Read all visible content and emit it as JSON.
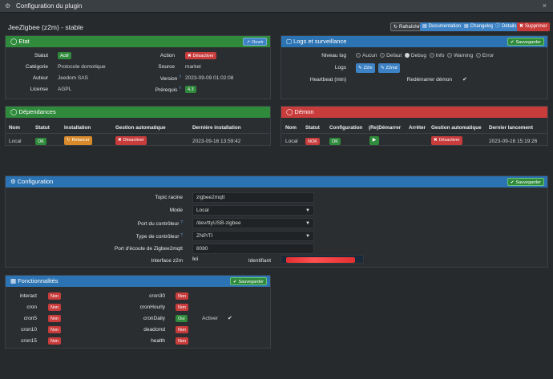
{
  "window": {
    "title": "Configuration du plugin",
    "close": "×"
  },
  "plugin_title": "JeeZigbee (z2m) - stable",
  "toolbar": {
    "refresh": "Rafraîchir",
    "docs": "Documentation",
    "changelog": "Changelog",
    "details": "Détails",
    "delete": "Supprimer"
  },
  "etat": {
    "title": "Etat",
    "open_button": "Ouvrir",
    "statut_label": "Statut",
    "statut_value": "Actif",
    "categorie_label": "Catégorie",
    "categorie_value": "Protocole domotique",
    "auteur_label": "Auteur",
    "auteur_value": "Jeedom SAS",
    "license_label": "License",
    "license_value": "AGPL",
    "action_label": "Action",
    "action_button": "Désactiver",
    "source_label": "Source",
    "source_value": "market",
    "version_label": "Version",
    "version_value": "2023-09-09 01:02:08",
    "prerequis_label": "Prérequis",
    "prerequis_value": "4.3"
  },
  "logs": {
    "title": "Logs et surveillance",
    "save_button": "Sauvegarder",
    "niveau_label": "Niveau log",
    "levels": [
      "Aucun",
      "Defaut",
      "Debug",
      "Info",
      "Warning",
      "Error"
    ],
    "selected_level": "Debug",
    "logs_label": "Logs",
    "log_buttons": [
      "Z2m",
      "Z2md"
    ],
    "heartbeat_label": "Heartbeat (min)",
    "restart_label": "Redémarrer démon"
  },
  "dependances": {
    "title": "Dépendances",
    "headers": [
      "Nom",
      "Statut",
      "Installation",
      "Gestion automatique",
      "Dernière installation"
    ],
    "row": {
      "nom": "Local",
      "statut": "OK",
      "installation": "Relancer",
      "gestion": "Désactiver",
      "derniere": "2023-09-16 13:59:42"
    }
  },
  "demon": {
    "title": "Démon",
    "headers": [
      "Nom",
      "Statut",
      "Configuration",
      "(Re)Démarrer",
      "Arrêter",
      "Gestion automatique",
      "Dernier lancement"
    ],
    "row": {
      "nom": "Local",
      "statut": "NOK",
      "configuration": "OK",
      "gestion": "Désactiver",
      "dernier": "2023-09-16 15:19:26"
    }
  },
  "configuration": {
    "title": "Configuration",
    "save_button": "Sauvegarder",
    "topic_label": "Topic racine",
    "topic_value": "zigbee2mqtt",
    "mode_label": "Mode",
    "mode_value": "Local",
    "port_label": "Port du contrôleur",
    "port_value": "/dev/ttyUSB-zigbee",
    "type_label": "Type de contrôleur",
    "type_value": "ZNP/TI",
    "ecoute_label": "Port d'écoute de Zigbee2mqtt",
    "ecoute_value": "8080",
    "interface_label": "Interface z2m",
    "interface_value": "Ici",
    "identifiant_label": "Identifiant"
  },
  "fonctionnalites": {
    "title": "Fonctionnalités",
    "save_button": "Sauvegarder",
    "left": [
      {
        "name": "interact",
        "value": "Non"
      },
      {
        "name": "cron",
        "value": "Non"
      },
      {
        "name": "cron5",
        "value": "Non"
      },
      {
        "name": "cron10",
        "value": "Non"
      },
      {
        "name": "cron15",
        "value": "Non"
      }
    ],
    "right": [
      {
        "name": "cron30",
        "value": "Non"
      },
      {
        "name": "cronHourly",
        "value": "Non"
      },
      {
        "name": "cronDaily",
        "value": "Oui"
      },
      {
        "name": "deadcmd",
        "value": "Non"
      },
      {
        "name": "health",
        "value": "Non"
      }
    ],
    "activer_label": "Activer"
  },
  "colors": {
    "blue": "#2c73b3",
    "green": "#2f8a3b",
    "red": "#c83c3c",
    "orange": "#d98a2b"
  }
}
